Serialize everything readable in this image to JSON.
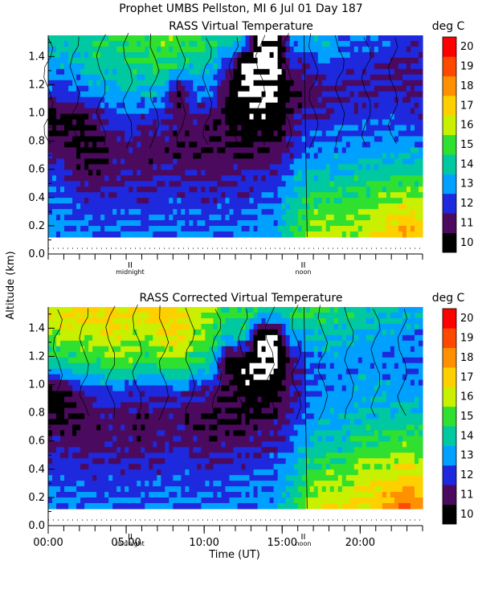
{
  "header": {
    "title": "Prophet   UMBS Pellston, MI    6 Jul 01 Day 187"
  },
  "panels": [
    {
      "title": "RASS Virtual Temperature",
      "units": "deg C"
    },
    {
      "title": "RASS Corrected Virtual Temperature",
      "units": "deg C"
    }
  ],
  "axis": {
    "ylabel": "Altitude (km)",
    "xlabel": "Time (UT)",
    "y_ticks": [
      "0.0",
      "0.2",
      "0.4",
      "0.6",
      "0.8",
      "1.0",
      "1.2",
      "1.4"
    ],
    "x_ticks": [
      "00:00",
      "05:00",
      "10:00",
      "15:00",
      "20:00"
    ],
    "markers": [
      "midnight",
      "noon"
    ]
  },
  "colorbar": {
    "labels": [
      "10",
      "11",
      "12",
      "13",
      "14",
      "15",
      "16",
      "17",
      "18",
      "19",
      "20"
    ],
    "colors": [
      "#000000",
      "#4b0a5e",
      "#1e28dc",
      "#00a0ff",
      "#00c8a0",
      "#30e030",
      "#c8f000",
      "#ffd000",
      "#ff9000",
      "#ff4800",
      "#ff0000"
    ]
  },
  "chart_data": [
    {
      "type": "heatmap",
      "title": "RASS Virtual Temperature",
      "xlabel": "Time (UT)",
      "ylabel": "Altitude (km)",
      "units": "deg C",
      "x_range_hours": [
        0,
        24
      ],
      "y_range_km": [
        0.0,
        1.55
      ],
      "data_altitude_range_km": [
        0.12,
        1.55
      ],
      "color_range": [
        10,
        21
      ],
      "x": [
        0,
        1,
        2,
        3,
        4,
        5,
        6,
        7,
        8,
        9,
        10,
        11,
        12,
        13,
        14,
        15,
        16,
        17,
        18,
        19,
        20,
        21,
        22,
        23
      ],
      "y": [
        0.15,
        0.35,
        0.55,
        0.75,
        0.95,
        1.15,
        1.35,
        1.5
      ],
      "z": [
        [
          13.5,
          13.2,
          12.8,
          11.6,
          10.5,
          12.4,
          13.6,
          14.5
        ],
        [
          13.3,
          12.9,
          12.4,
          11.3,
          10.4,
          12.6,
          13.8,
          14.4
        ],
        [
          13.1,
          12.6,
          11.5,
          10.6,
          10.8,
          13.0,
          14.0,
          14.6
        ],
        [
          13.0,
          12.5,
          11.4,
          10.8,
          11.6,
          13.6,
          14.6,
          15.0
        ],
        [
          13.0,
          12.5,
          11.6,
          11.4,
          12.2,
          13.6,
          14.4,
          14.8
        ],
        [
          13.1,
          12.6,
          11.9,
          11.8,
          12.6,
          14.2,
          14.8,
          15.2
        ],
        [
          13.0,
          12.4,
          11.5,
          11.2,
          12.0,
          14.0,
          14.8,
          15.4
        ],
        [
          13.1,
          12.6,
          12.0,
          11.4,
          12.2,
          13.8,
          15.2,
          15.6
        ],
        [
          13.2,
          12.7,
          12.0,
          11.0,
          11.6,
          10.8,
          14.8,
          15.4
        ],
        [
          13.0,
          12.6,
          11.8,
          11.2,
          11.8,
          12.8,
          14.4,
          15.2
        ],
        [
          13.0,
          12.5,
          11.6,
          11.0,
          11.4,
          13.0,
          14.2,
          14.8
        ],
        [
          13.1,
          12.6,
          11.9,
          11.2,
          11.0,
          10.6,
          12.6,
          14.6
        ],
        [
          13.2,
          12.7,
          12.0,
          10.8,
          10.4,
          9.6,
          9.5,
          13.6
        ],
        [
          13.4,
          12.9,
          12.2,
          11.0,
          10.2,
          9.5,
          9.5,
          9.8
        ],
        [
          13.6,
          13.1,
          12.3,
          11.2,
          10.4,
          9.6,
          9.5,
          9.8
        ],
        [
          15.2,
          14.4,
          13.4,
          12.2,
          11.6,
          10.8,
          12.4,
          13.2
        ],
        [
          16.0,
          15.2,
          14.2,
          13.0,
          12.2,
          11.4,
          12.2,
          13.6
        ],
        [
          16.4,
          15.4,
          14.4,
          13.2,
          12.4,
          11.6,
          12.8,
          14.0
        ],
        [
          16.2,
          15.2,
          14.2,
          13.2,
          12.6,
          12.0,
          12.4,
          13.4
        ],
        [
          16.4,
          15.6,
          14.6,
          13.4,
          12.6,
          12.0,
          12.4,
          13.0
        ],
        [
          16.8,
          15.8,
          14.6,
          13.4,
          12.6,
          12.0,
          12.2,
          12.8
        ],
        [
          17.6,
          16.4,
          14.8,
          13.6,
          12.8,
          12.0,
          12.0,
          12.6
        ],
        [
          18.2,
          16.6,
          15.0,
          13.6,
          12.6,
          11.8,
          11.8,
          12.4
        ],
        [
          17.8,
          16.4,
          14.8,
          13.4,
          12.4,
          11.8,
          11.8,
          12.2
        ]
      ]
    },
    {
      "type": "heatmap",
      "title": "RASS Corrected Virtual Temperature",
      "xlabel": "Time (UT)",
      "ylabel": "Altitude (km)",
      "units": "deg C",
      "x_range_hours": [
        0,
        24
      ],
      "y_range_km": [
        0.0,
        1.55
      ],
      "data_altitude_range_km": [
        0.12,
        1.55
      ],
      "color_range": [
        10,
        21
      ],
      "x": [
        0,
        1,
        2,
        3,
        4,
        5,
        6,
        7,
        8,
        9,
        10,
        11,
        12,
        13,
        14,
        15,
        16,
        17,
        18,
        19,
        20,
        21,
        22,
        23
      ],
      "y": [
        0.15,
        0.35,
        0.55,
        0.75,
        0.95,
        1.15,
        1.35,
        1.5
      ],
      "z": [
        [
          13.4,
          12.8,
          12.0,
          11.0,
          10.4,
          14.4,
          15.8,
          16.8
        ],
        [
          13.2,
          12.6,
          11.8,
          10.8,
          10.6,
          14.8,
          16.4,
          17.0
        ],
        [
          13.1,
          12.6,
          11.8,
          11.0,
          12.0,
          15.0,
          16.4,
          17.4
        ],
        [
          13.0,
          12.4,
          11.6,
          11.2,
          12.6,
          15.2,
          16.6,
          17.2
        ],
        [
          13.0,
          12.5,
          11.8,
          11.6,
          13.0,
          15.6,
          16.8,
          17.6
        ],
        [
          13.0,
          12.4,
          11.6,
          11.4,
          12.4,
          15.4,
          16.4,
          17.0
        ],
        [
          13.0,
          12.4,
          11.6,
          11.2,
          12.2,
          14.8,
          16.0,
          17.2
        ],
        [
          13.1,
          12.6,
          12.0,
          11.6,
          12.6,
          15.4,
          17.0,
          17.6
        ],
        [
          13.2,
          12.8,
          12.2,
          11.4,
          12.6,
          15.8,
          17.4,
          17.2
        ],
        [
          13.0,
          12.6,
          11.8,
          11.2,
          12.2,
          14.8,
          16.2,
          16.6
        ],
        [
          13.0,
          12.4,
          11.6,
          11.0,
          11.8,
          14.4,
          15.6,
          16.0
        ],
        [
          13.1,
          12.6,
          11.8,
          11.0,
          11.4,
          10.4,
          14.2,
          15.2
        ],
        [
          13.2,
          12.7,
          12.0,
          11.0,
          10.4,
          10.0,
          14.6,
          15.4
        ],
        [
          13.4,
          12.9,
          12.2,
          11.2,
          10.2,
          9.5,
          9.6,
          14.4
        ],
        [
          13.6,
          13.1,
          12.4,
          11.4,
          10.6,
          9.5,
          9.8,
          14.0
        ],
        [
          14.8,
          14.0,
          13.2,
          12.2,
          11.8,
          11.6,
          13.6,
          15.0
        ],
        [
          16.4,
          15.4,
          14.2,
          13.4,
          12.8,
          12.6,
          14.0,
          15.2
        ],
        [
          17.0,
          15.8,
          14.6,
          13.8,
          13.4,
          13.2,
          14.4,
          15.0
        ],
        [
          16.8,
          15.6,
          14.4,
          13.8,
          13.4,
          13.4,
          14.2,
          14.8
        ],
        [
          17.2,
          16.4,
          15.2,
          14.2,
          13.6,
          13.4,
          14.0,
          14.6
        ],
        [
          17.4,
          16.6,
          15.4,
          14.4,
          13.8,
          13.4,
          13.8,
          14.4
        ],
        [
          18.4,
          17.0,
          15.6,
          14.4,
          13.6,
          13.2,
          13.6,
          14.2
        ],
        [
          19.2,
          17.4,
          15.8,
          14.6,
          13.6,
          13.0,
          13.4,
          14.0
        ],
        [
          18.4,
          17.0,
          15.6,
          14.4,
          13.4,
          13.0,
          13.4,
          13.8
        ]
      ]
    }
  ]
}
